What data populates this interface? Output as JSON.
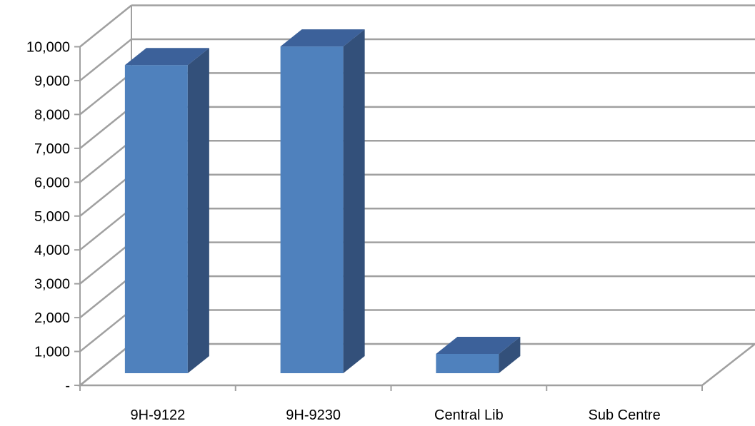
{
  "chart_data": {
    "type": "bar",
    "style": "3d-column",
    "categories": [
      "9H-9122",
      "9H-9230",
      "Central Lib",
      "Sub Centre"
    ],
    "values": [
      9100,
      9650,
      570,
      0
    ],
    "ylim": [
      0,
      10000
    ],
    "yticks": [
      0,
      1000,
      2000,
      3000,
      4000,
      5000,
      6000,
      7000,
      8000,
      9000,
      10000
    ],
    "ytick_labels": [
      "-",
      "1,000",
      "2,000",
      "3,000",
      "4,000",
      "5,000",
      "6,000",
      "7,000",
      "8,000",
      "9,000",
      "10,000"
    ],
    "grid": true,
    "legend": "none",
    "colors": {
      "bar_front": "#4f81bd",
      "bar_side": "#33507a",
      "bar_top": "#3c619a",
      "grid": "#a0a0a0"
    }
  }
}
